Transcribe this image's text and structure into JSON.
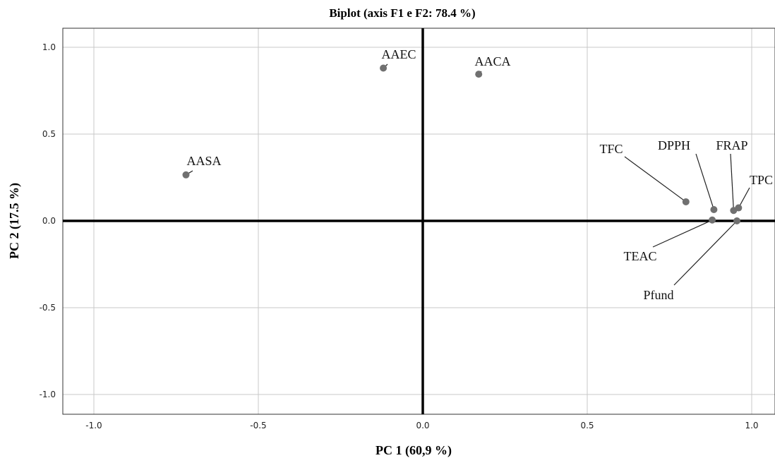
{
  "chart_data": {
    "type": "scatter",
    "title": "Biplot (axis F1 e F2: 78.4 %)",
    "xlabel": "PC 1 (60,9 %)",
    "ylabel": "PC 2 (17.5 %)",
    "xlim": [
      -1.1,
      1.07
    ],
    "ylim": [
      -1.11,
      1.11
    ],
    "x_ticks": [
      -1.0,
      -0.5,
      0.0,
      0.5,
      1.0
    ],
    "x_tick_labels": [
      "-1.0",
      "-0.5",
      "0.0",
      "0.5",
      "1.0"
    ],
    "y_ticks": [
      1.0,
      0.5,
      0.0,
      -0.5,
      -1.0
    ],
    "y_tick_labels": [
      "1.0",
      "0.5",
      "0.0",
      "-0.5",
      "-1.0"
    ],
    "grid": true,
    "zero_lines": true,
    "point_color": "#707070",
    "points": [
      {
        "label": "AAEC",
        "x": -0.12,
        "y": 0.88
      },
      {
        "label": "AACA",
        "x": 0.17,
        "y": 0.845
      },
      {
        "label": "AASA",
        "x": -0.72,
        "y": 0.265
      },
      {
        "label": "TFC",
        "x": 0.8,
        "y": 0.11
      },
      {
        "label": "DPPH",
        "x": 0.885,
        "y": 0.065
      },
      {
        "label": "FRAP",
        "x": 0.945,
        "y": 0.06
      },
      {
        "label": "TPC",
        "x": 0.96,
        "y": 0.075
      },
      {
        "label": "TEAC",
        "x": 0.88,
        "y": 0.005
      },
      {
        "label": "Pfund",
        "x": 0.955,
        "y": 0.0
      }
    ]
  }
}
